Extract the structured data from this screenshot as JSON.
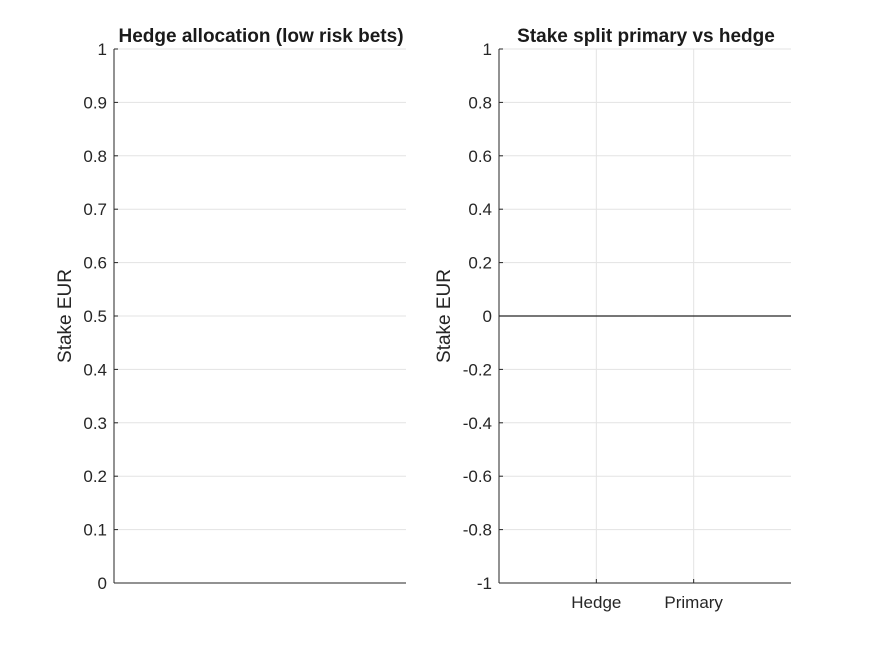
{
  "chart_data": [
    {
      "type": "bar",
      "title": "Hedge allocation (low risk bets)",
      "xlabel": "",
      "ylabel": "Stake EUR",
      "categories": [],
      "values": [],
      "ylim": [
        0,
        1
      ],
      "yticks": [
        "0",
        "0.1",
        "0.2",
        "0.3",
        "0.4",
        "0.5",
        "0.6",
        "0.7",
        "0.8",
        "0.9",
        "1"
      ],
      "grid": true,
      "legend": "none"
    },
    {
      "type": "bar",
      "title": "Stake split primary vs hedge",
      "xlabel": "",
      "ylabel": "Stake EUR",
      "categories": [
        "Hedge",
        "Primary"
      ],
      "values": [
        0,
        0
      ],
      "ylim": [
        -1,
        1
      ],
      "yticks": [
        "-1",
        "-0.8",
        "-0.6",
        "-0.4",
        "-0.2",
        "0",
        "0.2",
        "0.4",
        "0.6",
        "0.8",
        "1"
      ],
      "grid": true,
      "legend": "none"
    }
  ]
}
